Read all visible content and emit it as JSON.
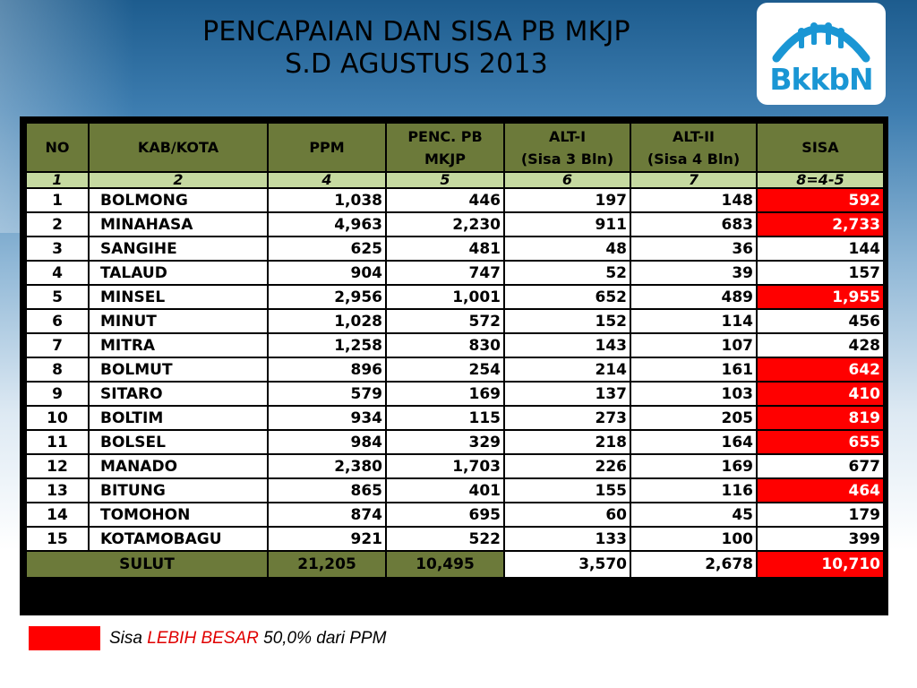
{
  "title_line1": "PENCAPAIAN DAN SISA PB MKJP",
  "title_line2": "S.D AGUSTUS 2013",
  "logo_text": "BkkbN",
  "colors": {
    "header_bg": "#6c7a3a",
    "index_bg": "#c5d9a0",
    "highlight": "#ff0000"
  },
  "headers": {
    "no": "NO",
    "kab": "KAB/KOTA",
    "ppm": "PPM",
    "penc_line1": "PENC. PB",
    "penc_line2": "MKJP",
    "alt1_line1": "ALT-I",
    "alt1_line2": "(Sisa 3 Bln)",
    "alt2_line1": "ALT-II",
    "alt2_line2": "(Sisa 4 Bln)",
    "sisa": "SISA"
  },
  "index_row": [
    "1",
    "2",
    "4",
    "5",
    "6",
    "7",
    "8=4-5"
  ],
  "rows": [
    {
      "no": "1",
      "kab": "BOLMONG",
      "ppm": "1,038",
      "penc": "446",
      "alt1": "197",
      "alt2": "148",
      "sisa": "592",
      "red": true
    },
    {
      "no": "2",
      "kab": "MINAHASA",
      "ppm": "4,963",
      "penc": "2,230",
      "alt1": "911",
      "alt2": "683",
      "sisa": "2,733",
      "red": true
    },
    {
      "no": "3",
      "kab": "SANGIHE",
      "ppm": "625",
      "penc": "481",
      "alt1": "48",
      "alt2": "36",
      "sisa": "144",
      "red": false
    },
    {
      "no": "4",
      "kab": "TALAUD",
      "ppm": "904",
      "penc": "747",
      "alt1": "52",
      "alt2": "39",
      "sisa": "157",
      "red": false
    },
    {
      "no": "5",
      "kab": "MINSEL",
      "ppm": "2,956",
      "penc": "1,001",
      "alt1": "652",
      "alt2": "489",
      "sisa": "1,955",
      "red": true
    },
    {
      "no": "6",
      "kab": "MINUT",
      "ppm": "1,028",
      "penc": "572",
      "alt1": "152",
      "alt2": "114",
      "sisa": "456",
      "red": false
    },
    {
      "no": "7",
      "kab": "MITRA",
      "ppm": "1,258",
      "penc": "830",
      "alt1": "143",
      "alt2": "107",
      "sisa": "428",
      "red": false
    },
    {
      "no": "8",
      "kab": "BOLMUT",
      "ppm": "896",
      "penc": "254",
      "alt1": "214",
      "alt2": "161",
      "sisa": "642",
      "red": true
    },
    {
      "no": "9",
      "kab": "SITARO",
      "ppm": "579",
      "penc": "169",
      "alt1": "137",
      "alt2": "103",
      "sisa": "410",
      "red": true
    },
    {
      "no": "10",
      "kab": "BOLTIM",
      "ppm": "934",
      "penc": "115",
      "alt1": "273",
      "alt2": "205",
      "sisa": "819",
      "red": true
    },
    {
      "no": "11",
      "kab": "BOLSEL",
      "ppm": "984",
      "penc": "329",
      "alt1": "218",
      "alt2": "164",
      "sisa": "655",
      "red": true
    },
    {
      "no": "12",
      "kab": "MANADO",
      "ppm": "2,380",
      "penc": "1,703",
      "alt1": "226",
      "alt2": "169",
      "sisa": "677",
      "red": false
    },
    {
      "no": "13",
      "kab": "BITUNG",
      "ppm": "865",
      "penc": "401",
      "alt1": "155",
      "alt2": "116",
      "sisa": "464",
      "red": true
    },
    {
      "no": "14",
      "kab": "TOMOHON",
      "ppm": "874",
      "penc": "695",
      "alt1": "60",
      "alt2": "45",
      "sisa": "179",
      "red": false
    },
    {
      "no": "15",
      "kab": "KOTAMOBAGU",
      "ppm": "921",
      "penc": "522",
      "alt1": "133",
      "alt2": "100",
      "sisa": "399",
      "red": false
    }
  ],
  "total": {
    "label": "SULUT",
    "ppm": "21,205",
    "penc": "10,495",
    "alt1": "3,570",
    "alt2": "2,678",
    "sisa": "10,710"
  },
  "legend": {
    "prefix": "Sisa ",
    "highlight": "LEBIH BESAR",
    "suffix": " 50,0% dari PPM"
  }
}
